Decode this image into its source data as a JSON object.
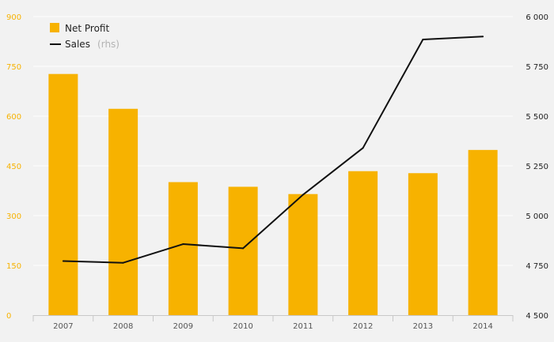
{
  "colors": {
    "background": "#f2f2f2",
    "grid": "#ffffff",
    "bar": "#f7b200",
    "line": "#111111",
    "left_axis_text": "#f7b200",
    "right_axis_text": "#222222"
  },
  "chart_data": {
    "type": "bar",
    "categories": [
      "2007",
      "2008",
      "2009",
      "2010",
      "2011",
      "2012",
      "2013",
      "2014"
    ],
    "series": [
      {
        "name": "Net Profit",
        "type": "bar",
        "axis": "left",
        "values": [
          727,
          622,
          401,
          387,
          365,
          434,
          428,
          498
        ]
      },
      {
        "name": "Sales",
        "name_suffix": "(rhs)",
        "type": "line",
        "axis": "right",
        "values": [
          4772,
          4763,
          4857,
          4836,
          5105,
          5340,
          5885,
          5900
        ]
      }
    ],
    "left_axis": {
      "ylim": [
        0,
        900
      ],
      "ticks": [
        "0",
        "150",
        "300",
        "450",
        "600",
        "750",
        "900"
      ],
      "tick_values": [
        0,
        150,
        300,
        450,
        600,
        750,
        900
      ]
    },
    "right_axis": {
      "ylim": [
        4500,
        6000
      ],
      "ticks": [
        "4 500",
        "4 750",
        "5 000",
        "5 250",
        "5 500",
        "5 750",
        "6 000"
      ],
      "tick_values": [
        4500,
        4750,
        5000,
        5250,
        5500,
        5750,
        6000
      ]
    },
    "title": "",
    "xlabel": "",
    "ylabel": "",
    "grid": true,
    "legend_position": "top-left"
  }
}
